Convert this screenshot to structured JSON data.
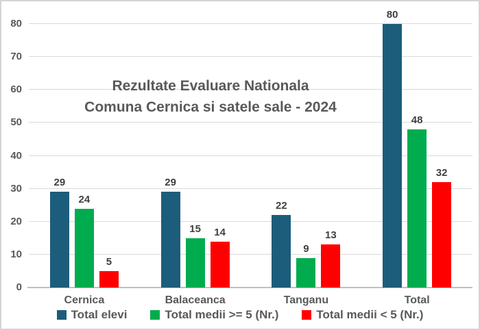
{
  "chart": {
    "title_line1": "Rezultate Evaluare Nationala",
    "title_line2": "Comuna Cernica si satele sale - 2024"
  },
  "chart_data": {
    "type": "bar",
    "title": "Rezultate Evaluare Nationala Comuna Cernica si satele sale - 2024",
    "categories": [
      "Cernica",
      "Balaceanca",
      "Tanganu",
      "Total"
    ],
    "series": [
      {
        "name": "Total elevi",
        "color": "#1C5D7C",
        "values": [
          29,
          29,
          22,
          80
        ]
      },
      {
        "name": "Total medii >= 5 (Nr.)",
        "color": "#00AC4D",
        "values": [
          24,
          15,
          9,
          48
        ]
      },
      {
        "name": "Total medii < 5 (Nr.)",
        "color": "#FF0000",
        "values": [
          5,
          14,
          13,
          32
        ]
      }
    ],
    "xlabel": "",
    "ylabel": "",
    "ylim": [
      0,
      80
    ],
    "ytick_interval": 10,
    "yticks": [
      0,
      10,
      20,
      30,
      40,
      50,
      60,
      70,
      80
    ],
    "grid": true,
    "legend_position": "bottom",
    "colors": {
      "gridline": "#d9d9d9",
      "axis_line": "#bfbfbf",
      "tick_text": "#595959",
      "value_label_text": "#404040",
      "title_text": "#595959"
    }
  }
}
